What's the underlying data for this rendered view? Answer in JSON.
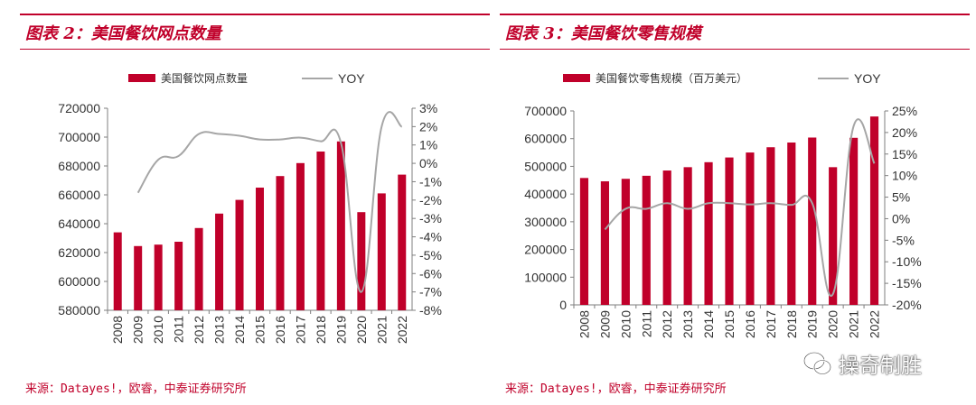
{
  "charts": [
    {
      "title": "图表 2：美国餐饮网点数量",
      "source": "来源：Datayes!，欧睿，中泰证券研究所",
      "legend_bar": "美国餐饮网点数量",
      "legend_line": "YOY"
    },
    {
      "title": "图表 3：美国餐饮零售规模",
      "source": "来源：Datayes!，欧睿，中泰证券研究所",
      "legend_bar": "美国餐饮零售规模（百万美元）",
      "legend_line": "YOY"
    }
  ],
  "watermark": "操奇制胜",
  "colors": {
    "bar": "#c0002a",
    "line": "#a6a6a6",
    "accent": "#c0002a"
  },
  "chart_data": [
    {
      "type": "bar",
      "categories": [
        "2008",
        "2009",
        "2010",
        "2011",
        "2012",
        "2013",
        "2014",
        "2015",
        "2016",
        "2017",
        "2018",
        "2019",
        "2020",
        "2021",
        "2022"
      ],
      "series": [
        {
          "name": "美国餐饮网点数量",
          "type": "bar",
          "axis": "left",
          "values": [
            634000,
            624500,
            625500,
            627500,
            637000,
            647000,
            656500,
            665000,
            673000,
            682000,
            690000,
            697000,
            648000,
            661000,
            674000
          ]
        },
        {
          "name": "YOY",
          "type": "line",
          "axis": "right",
          "unit": "%",
          "values": [
            null,
            -1.6,
            0.2,
            0.4,
            1.6,
            1.6,
            1.5,
            1.3,
            1.3,
            1.4,
            1.2,
            1.1,
            -7.0,
            2.0,
            2.0
          ]
        }
      ],
      "ylim_left": [
        580000,
        720000
      ],
      "yticks_left": [
        580000,
        600000,
        620000,
        640000,
        660000,
        680000,
        700000,
        720000
      ],
      "ylim_right": [
        -8,
        3
      ],
      "yticks_right": [
        "-8%",
        "-7%",
        "-6%",
        "-5%",
        "-4%",
        "-3%",
        "-2%",
        "-1%",
        "0%",
        "1%",
        "2%",
        "3%"
      ],
      "legend_position": "top-center",
      "grid": false
    },
    {
      "type": "bar",
      "categories": [
        "2008",
        "2009",
        "2010",
        "2011",
        "2012",
        "2013",
        "2014",
        "2015",
        "2016",
        "2017",
        "2018",
        "2019",
        "2020",
        "2021",
        "2022"
      ],
      "series": [
        {
          "name": "美国餐饮零售规模（百万美元）",
          "type": "bar",
          "axis": "left",
          "values": [
            458000,
            446000,
            455000,
            466000,
            485000,
            497000,
            515000,
            532000,
            550000,
            569000,
            586000,
            604000,
            497000,
            603000,
            680000
          ]
        },
        {
          "name": "YOY",
          "type": "line",
          "axis": "right",
          "unit": "%",
          "values": [
            null,
            -2.5,
            2.3,
            2.3,
            3.6,
            2.3,
            3.6,
            3.6,
            3.3,
            3.6,
            3.2,
            3.6,
            -17.5,
            21.5,
            12.8
          ]
        }
      ],
      "ylim_left": [
        0,
        700000
      ],
      "yticks_left": [
        0,
        100000,
        200000,
        300000,
        400000,
        500000,
        600000,
        700000
      ],
      "ylim_right": [
        -20,
        25
      ],
      "yticks_right": [
        "-20%",
        "-15%",
        "-10%",
        "-5%",
        "0%",
        "5%",
        "10%",
        "15%",
        "20%",
        "25%"
      ],
      "legend_position": "top-center",
      "grid": false
    }
  ]
}
